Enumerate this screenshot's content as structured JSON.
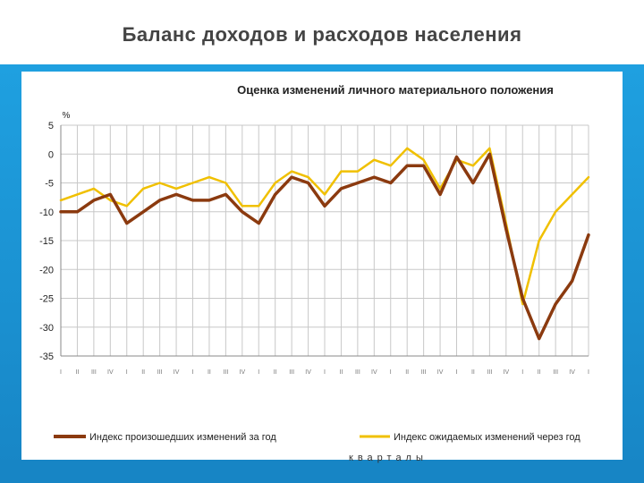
{
  "slide": {
    "title": "Баланс доходов и расходов населения"
  },
  "chart_data": {
    "type": "line",
    "title": "Оценка изменений личного материального положения",
    "ylabel": "%",
    "xlabel": "кварталы",
    "ylim": [
      -35,
      5
    ],
    "yticks": [
      5,
      0,
      -5,
      -10,
      -15,
      -20,
      -25,
      -30,
      -35
    ],
    "grid": true,
    "legend_position": "bottom",
    "x": [
      "I",
      "II",
      "III",
      "IV",
      "I",
      "II",
      "III",
      "IV",
      "I",
      "II",
      "III",
      "IV",
      "I",
      "II",
      "III",
      "IV",
      "I",
      "II",
      "III",
      "IV",
      "I",
      "II",
      "III",
      "IV",
      "I",
      "II",
      "III",
      "IV",
      "I",
      "II",
      "III",
      "IV",
      "I"
    ],
    "series": [
      {
        "name": "Индекс произошедших изменений за год",
        "color": "#8b3a0f",
        "values": [
          -10,
          -10,
          -8,
          -7,
          -12,
          -10,
          -8,
          -7,
          -8,
          -8,
          -7,
          -10,
          -12,
          -7,
          -4,
          -5,
          -9,
          -6,
          -5,
          -4,
          -5,
          -2,
          -2,
          -7,
          -0.5,
          -5,
          0,
          -13,
          -25,
          -32,
          -26,
          -22,
          -14
        ]
      },
      {
        "name": "Индекс ожидаемых изменений через год",
        "color": "#f0c000",
        "values": [
          -8,
          -7,
          -6,
          -8,
          -9,
          -6,
          -5,
          -6,
          -5,
          -4,
          -5,
          -9,
          -9,
          -5,
          -3,
          -4,
          -7,
          -3,
          -3,
          -1,
          -2,
          1,
          -1,
          -6,
          -1,
          -2,
          1,
          -12,
          -26,
          -15,
          -10,
          -7,
          -4
        ]
      }
    ]
  }
}
